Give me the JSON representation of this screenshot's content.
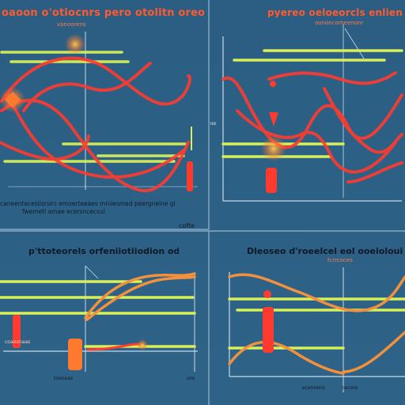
{
  "palette": {
    "background": "#2d5f84",
    "panel_line": "#a8c7de",
    "curve_red": "#ff3b2f",
    "curve_orange": "#f2913d",
    "bar_green": "#d6ef5a",
    "accent_orange": "#ff7a2e"
  },
  "panels": [
    {
      "title": "oaoon o'otiocnrs pero otolitn oreon oteln",
      "subtitle": "vanoorens",
      "caption_1": "caneenteceslisrsirs emoerteeaes mniiesmed peergnelne glotel",
      "caption_2": "fwemetl amae ecersncecsul",
      "footer": "cofte"
    },
    {
      "title": "pyereo oeloeorcls enlienloilnoron",
      "subtitle": "oononcomeenonr",
      "axis_tick": "lio"
    },
    {
      "title": "p'ttoteorels orfeniiotiiodion odotnl",
      "tick_a": "toeneas",
      "tick_b": "olls",
      "tick_c": "coaoonaas"
    },
    {
      "title": "Dleoseo d'roeelcel eol ooeiolouie to",
      "subtitle": "fcrrcoces",
      "tick_a": "ecennens",
      "tick_b": "oecore"
    }
  ]
}
